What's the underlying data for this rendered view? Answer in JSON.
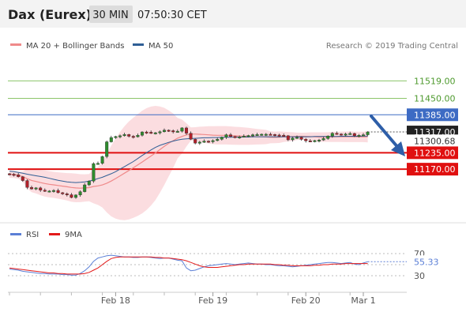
{
  "header": {
    "title": "Dax (Eurex)",
    "timeframe": "30 MIN",
    "time": "07:50:30 CET"
  },
  "legend": {
    "items": [
      {
        "label": "MA 20 + Bollinger Bands",
        "color": "#ef8a8a"
      },
      {
        "label": "MA 50",
        "color": "#2f5e95"
      }
    ],
    "credit": "Research © 2019 Trading Central"
  },
  "rsi_legend": {
    "items": [
      {
        "label": "RSI",
        "color": "#5b7fd6"
      },
      {
        "label": "9MA",
        "color": "#e31a1a"
      }
    ]
  },
  "colors": {
    "resistance": "#8cc56a",
    "pivot": "#3d6bc4",
    "support": "#e01010",
    "last_price_bg": "#222222",
    "arrow": "#2e5ea8",
    "candle_up": "#2d8c2d",
    "candle_down": "#b0202a",
    "band_fill": "#fad2d6"
  },
  "chart_data": {
    "type": "candlestick",
    "ylim": [
      10980,
      11620
    ],
    "x_tick_labels": [
      {
        "label": "Feb 18",
        "index": 24
      },
      {
        "label": "Feb 19",
        "index": 46
      },
      {
        "label": "Feb 20",
        "index": 67
      },
      {
        "label": "Mar 1",
        "index": 80
      }
    ],
    "levels": [
      {
        "label": "11519.00",
        "value": 11519,
        "kind": "resistance"
      },
      {
        "label": "11450.00",
        "value": 11450,
        "kind": "resistance"
      },
      {
        "label": "11385.00",
        "value": 11385,
        "kind": "pivot"
      },
      {
        "label": "11235.00",
        "value": 11235,
        "kind": "support"
      },
      {
        "label": "11170.00",
        "value": 11170,
        "kind": "support"
      }
    ],
    "last_price": {
      "label": "11317.00",
      "value": 11317
    },
    "ma50_price": {
      "label": "11300.68",
      "value": 11300.68
    },
    "closes": [
      11150,
      11148,
      11140,
      11125,
      11098,
      11092,
      11096,
      11087,
      11083,
      11084,
      11086,
      11077,
      11073,
      11069,
      11058,
      11068,
      11081,
      11108,
      11123,
      11192,
      11193,
      11220,
      11278,
      11295,
      11299,
      11302,
      11307,
      11300,
      11298,
      11304,
      11317,
      11316,
      11312,
      11314,
      11318,
      11324,
      11322,
      11318,
      11320,
      11333,
      11312,
      11288,
      11273,
      11277,
      11281,
      11279,
      11283,
      11288,
      11296,
      11306,
      11299,
      11297,
      11298,
      11301,
      11303,
      11306,
      11307,
      11308,
      11308,
      11307,
      11305,
      11304,
      11302,
      11286,
      11293,
      11296,
      11288,
      11282,
      11281,
      11283,
      11285,
      11291,
      11301,
      11312,
      11309,
      11307,
      11309,
      11311,
      11302,
      11304,
      11306,
      11317
    ],
    "ma50": [
      11162,
      11160,
      11157,
      11154,
      11150,
      11147,
      11144,
      11141,
      11138,
      11134,
      11130,
      11126,
      11123,
      11120,
      11118,
      11117,
      11118,
      11120,
      11123,
      11127,
      11133,
      11138,
      11145,
      11152,
      11160,
      11170,
      11180,
      11190,
      11200,
      11212,
      11224,
      11235,
      11246,
      11256,
      11264,
      11270,
      11276,
      11281,
      11285,
      11288,
      11290,
      11291,
      11292,
      11293,
      11294,
      11294,
      11295,
      11295,
      11296,
      11296,
      11296,
      11297,
      11297,
      11297,
      11297,
      11298,
      11298,
      11298,
      11298,
      11298,
      11298,
      11298,
      11298,
      11298,
      11298,
      11298,
      11298,
      11298,
      11298,
      11299,
      11299,
      11299,
      11299,
      11299,
      11299,
      11300,
      11300,
      11300,
      11300,
      11300,
      11301,
      11301
    ],
    "rsi_ylim": [
      0,
      100
    ],
    "rsi_ticks": [
      70,
      50,
      30
    ],
    "rsi_last": {
      "label": "55.33",
      "value": 55.33
    },
    "rsi": [
      42,
      41,
      40,
      38,
      37,
      36,
      35,
      34,
      34,
      33,
      33,
      33,
      32,
      32,
      31,
      31,
      34,
      39,
      46,
      56,
      62,
      64,
      66,
      67,
      66,
      65,
      64,
      64,
      63,
      63,
      64,
      64,
      63,
      62,
      61,
      62,
      62,
      60,
      58,
      57,
      44,
      39,
      40,
      43,
      46,
      48,
      49,
      50,
      51,
      52,
      51,
      50,
      51,
      52,
      53,
      52,
      51,
      51,
      50,
      50,
      49,
      48,
      48,
      47,
      46,
      47,
      48,
      49,
      50,
      51,
      52,
      53,
      54,
      54,
      53,
      52,
      53,
      54,
      51,
      50,
      53,
      55.33
    ],
    "rsi_ma": [
      44,
      43,
      42,
      41,
      40,
      39,
      38,
      37,
      36,
      35,
      35,
      34,
      34,
      33,
      33,
      33,
      33,
      34,
      36,
      40,
      44,
      50,
      56,
      61,
      63,
      64,
      64,
      64,
      64,
      64,
      64,
      64,
      64,
      63,
      63,
      62,
      62,
      61,
      60,
      59,
      57,
      54,
      51,
      48,
      46,
      45,
      45,
      45,
      46,
      47,
      48,
      49,
      50,
      50,
      51,
      51,
      51,
      51,
      51,
      51,
      50,
      50,
      49,
      49,
      48,
      48,
      48,
      48,
      48,
      49,
      49,
      50,
      50,
      51,
      51,
      51,
      52,
      52,
      52,
      52,
      52,
      52
    ]
  }
}
